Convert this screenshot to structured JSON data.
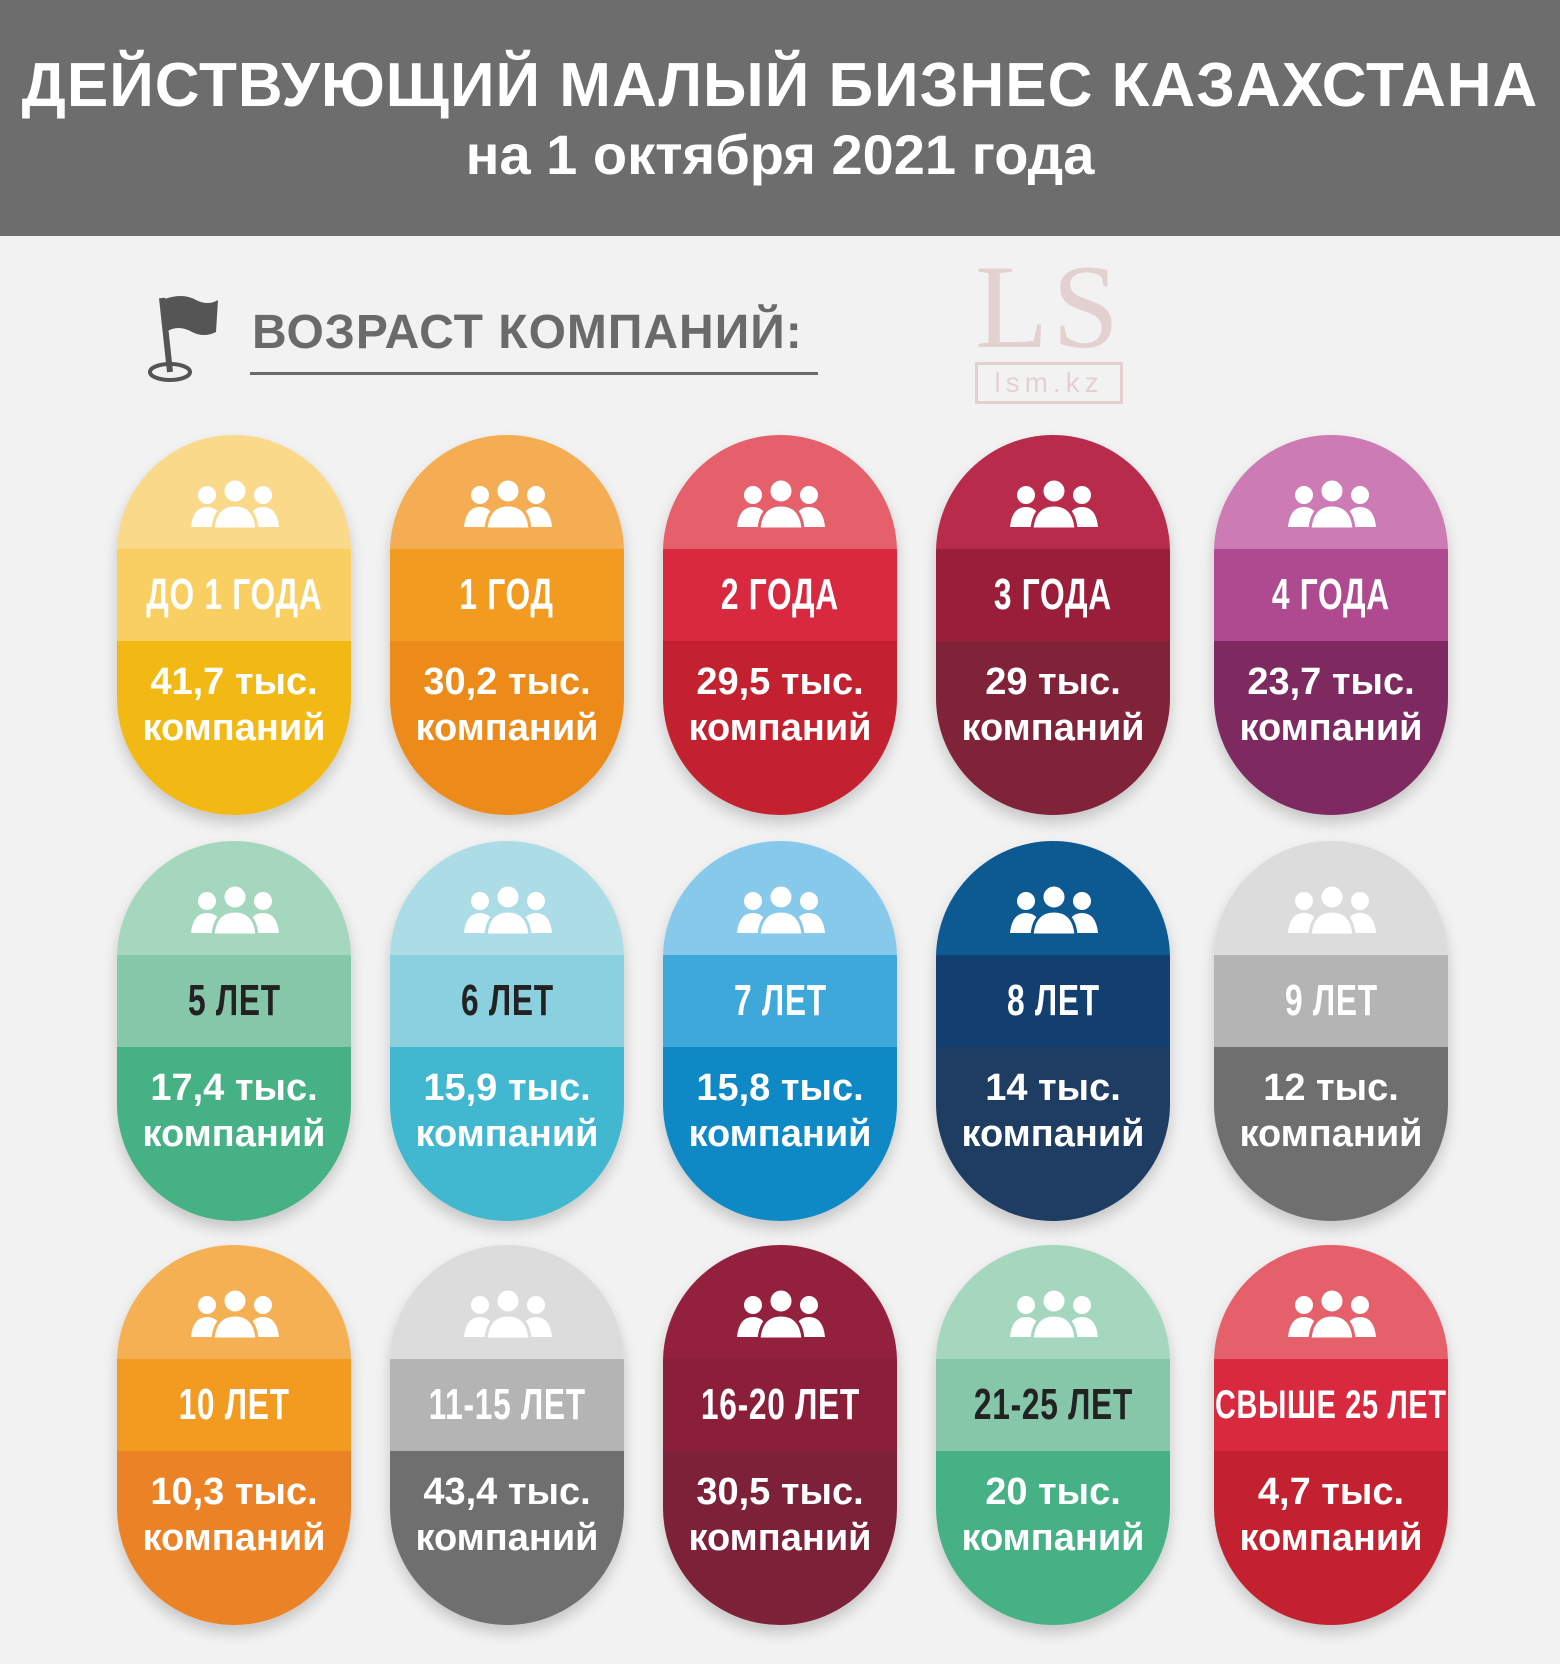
{
  "header": {
    "title": "ДЕЙСТВУЮЩИЙ МАЛЫЙ БИЗНЕС КАЗАХСТАНА",
    "subtitle": "на 1 октября 2021 года"
  },
  "section": {
    "title": "ВОЗРАСТ КОМПАНИЙ:"
  },
  "watermark": {
    "big": "LS",
    "small": "lsm.kz"
  },
  "unit_label": "компаний",
  "pills": [
    {
      "label": "ДО 1 ГОДА",
      "value": "41,7 тыс.",
      "unit": "компаний",
      "colors": [
        "#fbd98a",
        "#f9cf62",
        "#f2b814"
      ],
      "label_color": "#ffffff"
    },
    {
      "label": "1 ГОД",
      "value": "30,2 тыс.",
      "unit": "компаний",
      "colors": [
        "#f4ad52",
        "#f39a20",
        "#ec8a1a"
      ],
      "label_color": "#ffffff"
    },
    {
      "label": "2 ГОДА",
      "value": "29,5 тыс.",
      "unit": "компаний",
      "colors": [
        "#e6606b",
        "#d9293f",
        "#c3212f"
      ],
      "label_color": "#ffffff"
    },
    {
      "label": "3 ГОДА",
      "value": "29 тыс.",
      "unit": "компаний",
      "colors": [
        "#b82b4b",
        "#9a1e3a",
        "#802238"
      ],
      "label_color": "#ffffff"
    },
    {
      "label": "4 ГОДА",
      "value": "23,7 тыс.",
      "unit": "компаний",
      "colors": [
        "#cd7bb4",
        "#b04a90",
        "#7e2a61"
      ],
      "label_color": "#ffffff"
    },
    {
      "label": "5 ЛЕТ",
      "value": "17,4 тыс.",
      "unit": "компаний",
      "colors": [
        "#a5d7bf",
        "#86c7aa",
        "#45b184"
      ],
      "label_color": "#222222"
    },
    {
      "label": "6 ЛЕТ",
      "value": "15,9 тыс.",
      "unit": "компаний",
      "colors": [
        "#acdde6",
        "#8ad0de",
        "#42b8d0"
      ],
      "label_color": "#222222"
    },
    {
      "label": "7 ЛЕТ",
      "value": "15,8 тыс.",
      "unit": "компаний",
      "colors": [
        "#86c9ea",
        "#3fa8db",
        "#0f88c6"
      ],
      "label_color": "#ffffff"
    },
    {
      "label": "8 ЛЕТ",
      "value": "14 тыс.",
      "unit": "компаний",
      "colors": [
        "#0d5992",
        "#133f70",
        "#1f3d62"
      ],
      "label_color": "#ffffff"
    },
    {
      "label": "9 ЛЕТ",
      "value": "12 тыс.",
      "unit": "компаний",
      "colors": [
        "#dcdcdc",
        "#b4b4b4",
        "#6f6f6f"
      ],
      "label_color": "#ffffff"
    },
    {
      "label": "10 ЛЕТ",
      "value": "10,3 тыс.",
      "unit": "компаний",
      "colors": [
        "#f5b053",
        "#f39a20",
        "#ec8226"
      ],
      "label_color": "#ffffff"
    },
    {
      "label": "11-15 ЛЕТ",
      "value": "43,4 тыс.",
      "unit": "компаний",
      "colors": [
        "#dcdcdc",
        "#b4b4b4",
        "#6f6f6f"
      ],
      "label_color": "#ffffff"
    },
    {
      "label": "16-20 ЛЕТ",
      "value": "30,5 тыс.",
      "unit": "компаний",
      "colors": [
        "#93213d",
        "#8b1e38",
        "#7d2138"
      ],
      "label_color": "#ffffff"
    },
    {
      "label": "21-25 ЛЕТ",
      "value": "20 тыс.",
      "unit": "компаний",
      "colors": [
        "#a5d7bf",
        "#86c7aa",
        "#45b184"
      ],
      "label_color": "#222222"
    },
    {
      "label": "СВЫШЕ 25 ЛЕТ",
      "value": "4,7 тыс.",
      "unit": "компаний",
      "colors": [
        "#e6606b",
        "#d9293f",
        "#c3212f"
      ],
      "label_color": "#ffffff"
    }
  ]
}
